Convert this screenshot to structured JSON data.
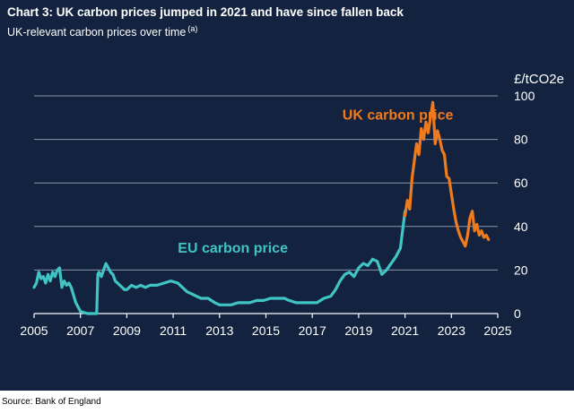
{
  "title": "Chart 3: UK carbon prices jumped in 2021 and have since fallen back",
  "subtitle": "UK-relevant carbon prices over time",
  "subtitle_note": "(a)",
  "source": "Source: Bank of England",
  "colors": {
    "background": "#13233f",
    "eu": "#40c4c4",
    "uk": "#f07b1d",
    "grid": "#8c96a8",
    "text": "#ffffff"
  },
  "chart_data": {
    "type": "line",
    "title": "Chart 3: UK carbon prices jumped in 2021 and have since fallen back",
    "subtitle": "UK-relevant carbon prices over time",
    "ylabel": "£/tCO2e",
    "xlim": [
      2005,
      2025
    ],
    "ylim": [
      0,
      100
    ],
    "xticks": [
      2005,
      2007,
      2009,
      2011,
      2013,
      2015,
      2017,
      2019,
      2021,
      2023,
      2025
    ],
    "yticks": [
      0,
      20,
      40,
      60,
      80,
      100
    ],
    "grid": "horizontal",
    "y_axis_side": "right",
    "series": [
      {
        "name": "EU carbon price",
        "color": "#40c4c4",
        "x": [
          2005.0,
          2005.1,
          2005.2,
          2005.3,
          2005.4,
          2005.5,
          2005.6,
          2005.7,
          2005.8,
          2005.9,
          2006.0,
          2006.1,
          2006.2,
          2006.3,
          2006.4,
          2006.5,
          2006.6,
          2006.8,
          2007.0,
          2007.3,
          2007.6,
          2007.65,
          2007.7,
          2007.75,
          2007.8,
          2007.9,
          2008.0,
          2008.1,
          2008.2,
          2008.3,
          2008.4,
          2008.5,
          2008.6,
          2008.7,
          2008.8,
          2008.9,
          2009.0,
          2009.2,
          2009.4,
          2009.6,
          2009.8,
          2010.0,
          2010.3,
          2010.6,
          2010.9,
          2011.2,
          2011.4,
          2011.6,
          2011.8,
          2012.0,
          2012.2,
          2012.5,
          2012.8,
          2013.0,
          2013.2,
          2013.5,
          2013.8,
          2014.0,
          2014.3,
          2014.6,
          2014.9,
          2015.2,
          2015.5,
          2015.8,
          2016.0,
          2016.3,
          2016.6,
          2016.9,
          2017.2,
          2017.5,
          2017.8,
          2018.0,
          2018.2,
          2018.4,
          2018.6,
          2018.8,
          2019.0,
          2019.2,
          2019.4,
          2019.6,
          2019.8,
          2020.0,
          2020.2,
          2020.4,
          2020.6,
          2020.8,
          2021.0
        ],
        "values": [
          12,
          14,
          19,
          16,
          17,
          14,
          18,
          15,
          19,
          17,
          20,
          21,
          12,
          15,
          13,
          14,
          12,
          5,
          1,
          0,
          0,
          0,
          0,
          18,
          19,
          17,
          20,
          23,
          21,
          19,
          18,
          15,
          14,
          13,
          12,
          11,
          11,
          13,
          12,
          13,
          12,
          13,
          13,
          14,
          15,
          14,
          12,
          10,
          9,
          8,
          7,
          7,
          5,
          4,
          4,
          4,
          5,
          5,
          5,
          6,
          6,
          7,
          7,
          7,
          6,
          5,
          5,
          5,
          5,
          7,
          8,
          11,
          15,
          18,
          19,
          17,
          21,
          23,
          22,
          25,
          24,
          18,
          20,
          23,
          26,
          30,
          47
        ]
      },
      {
        "name": "UK carbon price",
        "color": "#f07b1d",
        "x": [
          2021.0,
          2021.1,
          2021.2,
          2021.3,
          2021.4,
          2021.5,
          2021.6,
          2021.7,
          2021.8,
          2021.9,
          2022.0,
          2022.1,
          2022.2,
          2022.3,
          2022.4,
          2022.5,
          2022.6,
          2022.7,
          2022.8,
          2022.9,
          2023.0,
          2023.1,
          2023.2,
          2023.3,
          2023.4,
          2023.5,
          2023.6,
          2023.7,
          2023.8,
          2023.9,
          2024.0,
          2024.1,
          2024.2,
          2024.3,
          2024.4,
          2024.5,
          2024.6
        ],
        "values": [
          45,
          52,
          48,
          62,
          70,
          78,
          73,
          85,
          80,
          88,
          83,
          90,
          97,
          78,
          84,
          80,
          75,
          73,
          63,
          62,
          55,
          48,
          42,
          38,
          35,
          33,
          31,
          36,
          44,
          47,
          38,
          41,
          36,
          38,
          35,
          36,
          34
        ]
      }
    ],
    "annotations": [
      {
        "text": "UK carbon price",
        "x": 2018.3,
        "y": 89,
        "color": "#f07b1d"
      },
      {
        "text": "EU carbon price",
        "x": 2011.2,
        "y": 28,
        "color": "#40c4c4"
      }
    ]
  }
}
